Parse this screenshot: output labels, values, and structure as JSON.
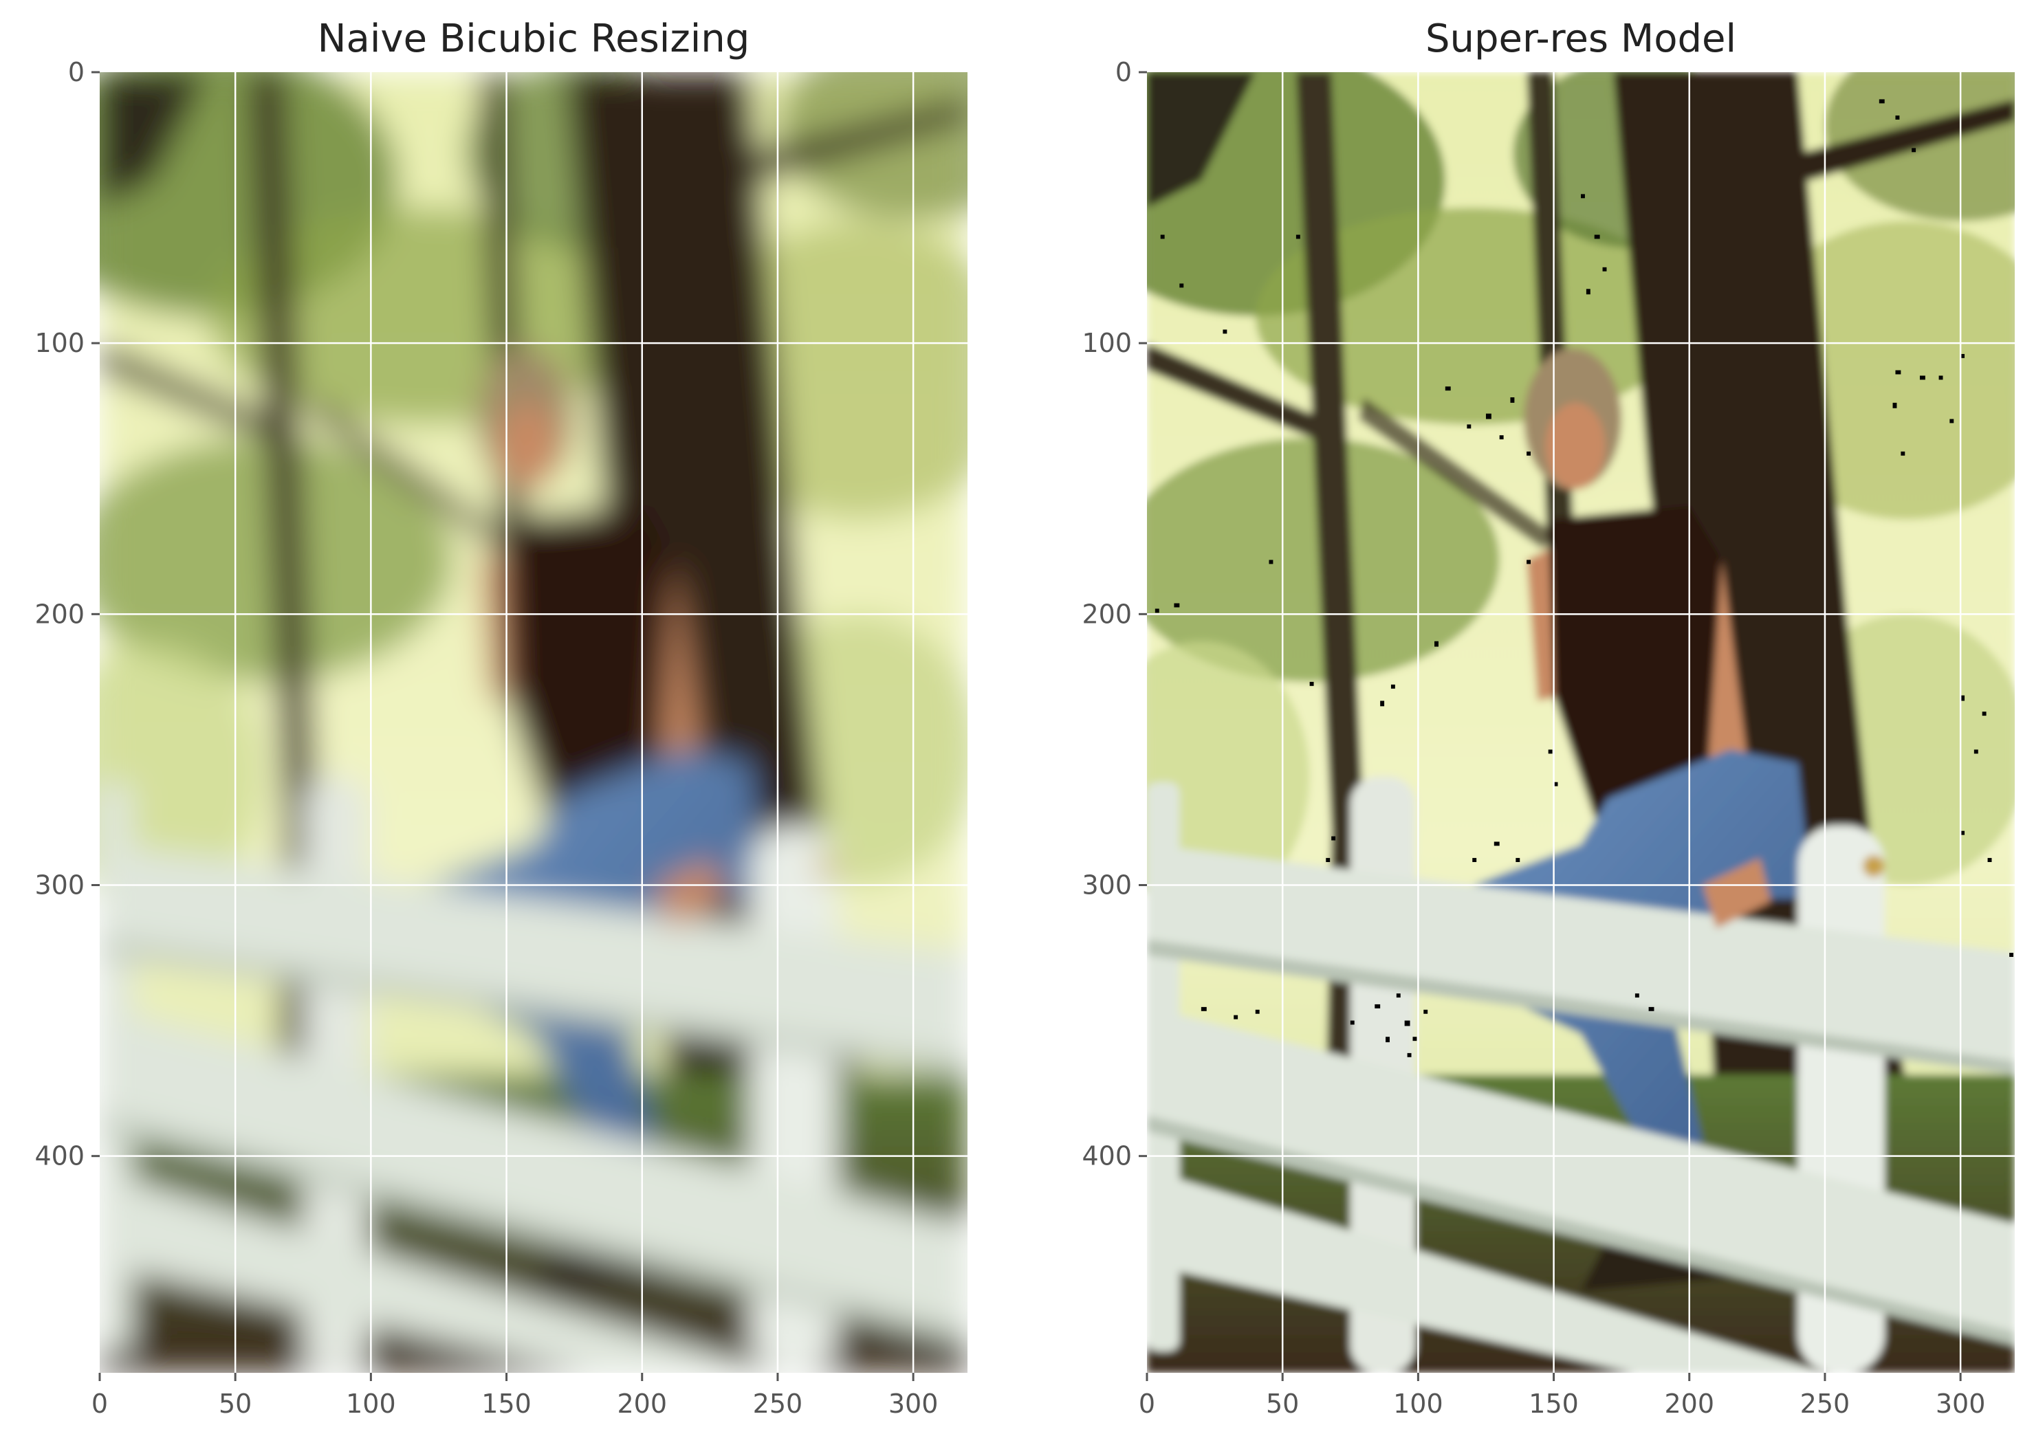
{
  "chart_data": [
    {
      "type": "image",
      "title": "Naive Bicubic Resizing",
      "xlabel": "",
      "ylabel": "",
      "xlim": [
        0,
        320
      ],
      "ylim": [
        480,
        0
      ],
      "xticks": [
        0,
        50,
        100,
        150,
        200,
        250,
        300
      ],
      "yticks": [
        0,
        100,
        200,
        300,
        400
      ],
      "grid": true,
      "grid_color": "#ffffff",
      "image_content": "photo of a woman in a dark top and blue jeans sitting on a white wooden fence in front of pine trees; smooth, blurry upscale"
    },
    {
      "type": "image",
      "title": "Super-res Model",
      "xlabel": "",
      "ylabel": "",
      "xlim": [
        0,
        320
      ],
      "ylim": [
        480,
        0
      ],
      "xticks": [
        0,
        50,
        100,
        150,
        200,
        250,
        300
      ],
      "yticks": [
        0,
        100,
        200,
        300,
        400
      ],
      "grid": true,
      "grid_color": "#ffffff",
      "image_content": "same photo, sharper upscale with scattered black pixel artifacts in bright regions"
    }
  ],
  "colors": {
    "foliage_light": "#e9efb0",
    "foliage_mid": "#9dae58",
    "foliage_dark": "#3a4a22",
    "trunk": "#2d2418",
    "fence": "#dfe6dc",
    "fence_shadow": "#b9c4b6",
    "jeans": "#5a7fae",
    "top": "#2a1810",
    "skin": "#c98a64",
    "hair": "#a08a68",
    "ground": "#3f5a2a",
    "tick_text": "#555555",
    "title_text": "#222222"
  }
}
